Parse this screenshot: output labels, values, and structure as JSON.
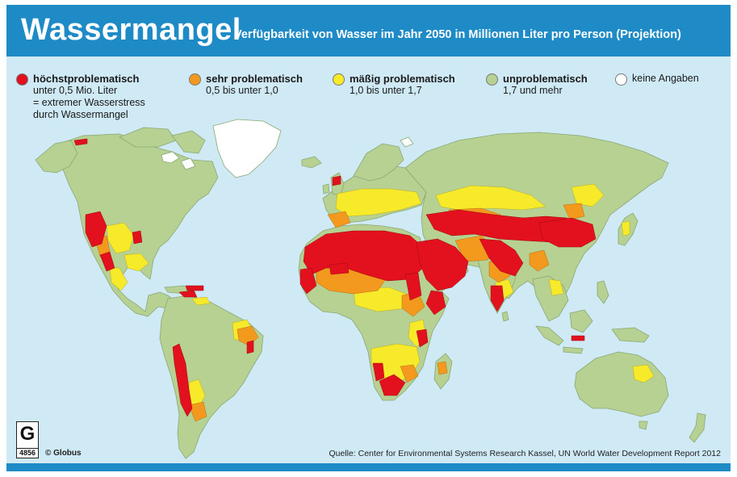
{
  "header": {
    "title": "Wassermangel",
    "subtitle": "Verfügbarkeit von Wasser im Jahr 2050 in Millionen Liter pro Person (Projektion)"
  },
  "legend": [
    {
      "label": "höchstproblematisch",
      "lines": [
        "unter 0,5 Mio. Liter",
        "= extremer Wasserstress",
        "durch Wassermangel"
      ],
      "color": "#e3101e"
    },
    {
      "label": "sehr problematisch",
      "lines": [
        "0,5 bis unter 1,0"
      ],
      "color": "#f39a1e"
    },
    {
      "label": "mäßig problematisch",
      "lines": [
        "1,0 bis unter 1,7"
      ],
      "color": "#f6ea2a"
    },
    {
      "label": "unproblematisch",
      "lines": [
        "1,7 und mehr"
      ],
      "color": "#b6d192"
    },
    {
      "label": "keine Angaben",
      "lines": [],
      "color": "#ffffff"
    }
  ],
  "footer": {
    "logo_letter": "G",
    "logo_number": "4856",
    "credit": "© Globus",
    "source": "Quelle: Center for Environmental Systems Research Kassel, UN World Water Development Report 2012"
  },
  "colors": {
    "header_bar": "#1f8bc6",
    "ocean": "#cfe9f5",
    "land": "#b6d192"
  }
}
